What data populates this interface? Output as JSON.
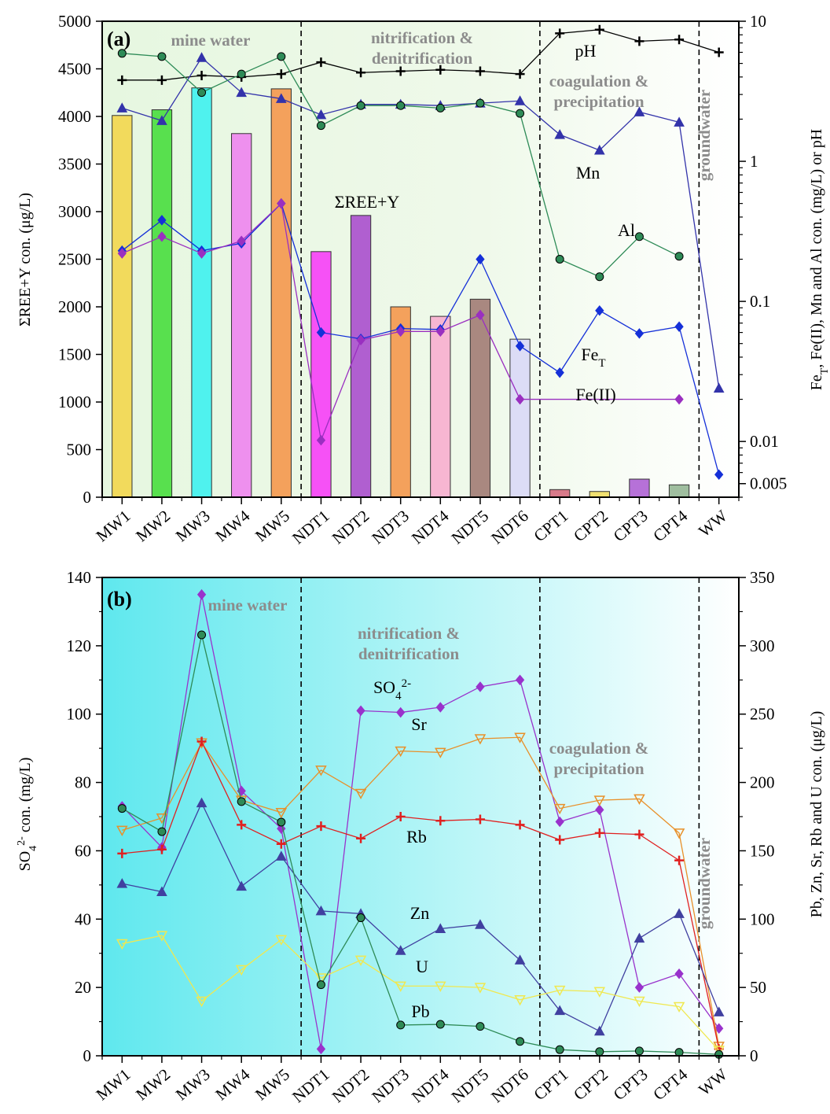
{
  "chart_data": [
    {
      "type": "bar",
      "panel_label": "(a)",
      "categories": [
        "MW1",
        "MW2",
        "MW3",
        "MW4",
        "MW5",
        "NDT1",
        "NDT2",
        "NDT3",
        "NDT4",
        "NDT5",
        "NDT6",
        "CPT1",
        "CPT2",
        "CPT3",
        "CPT4",
        "WW"
      ],
      "ylabel": "ΣREE+Y con. (μg/L)",
      "ylim": [
        0,
        5000
      ],
      "yticks": [
        "0",
        "500",
        "1000",
        "1500",
        "2000",
        "2500",
        "3000",
        "3500",
        "4000",
        "4500",
        "5000"
      ],
      "y2label": "FeT, Fe(II), Mn and Al con. (mg/L) or pH",
      "y2label_main": "Fe",
      "y2label_sub": "T",
      "y2label_rest": ", Fe(II), Mn and Al con. (mg/L) or pH",
      "y2scale": "log",
      "y2lim": [
        0.004,
        10
      ],
      "y2ticks": [
        {
          "value": 0.005,
          "label": "0.005"
        },
        {
          "value": 0.01,
          "label": "0.01"
        },
        {
          "value": 0.1,
          "label": "0.1"
        },
        {
          "value": 1,
          "label": "1"
        },
        {
          "value": 10,
          "label": "10"
        }
      ],
      "regions": [
        {
          "label_lines": [
            "mine water"
          ],
          "from": -0.5,
          "to": 4.5
        },
        {
          "label_lines": [
            "nitrification &",
            "denitrification"
          ],
          "from": 4.5,
          "to": 10.5
        },
        {
          "label_lines": [
            "coagulation &",
            "precipitation"
          ],
          "from": 10.5,
          "to": 14.5
        },
        {
          "label_lines": [
            "groundwater"
          ],
          "from": 14.5,
          "to": 15.5
        }
      ],
      "bars": {
        "name": "ΣREE+Y",
        "values": [
          4010,
          4070,
          4300,
          3820,
          4290,
          2580,
          2960,
          2000,
          1900,
          2080,
          1660,
          80,
          60,
          190,
          130,
          null
        ],
        "colors": [
          "#f2da5c",
          "#58e04e",
          "#4ff2ee",
          "#ee90ee",
          "#f4a15c",
          "#f651f6",
          "#b05fd0",
          "#f4a15c",
          "#f7b6d2",
          "#a98880",
          "#dcdcf6",
          "#d87a8a",
          "#f0e070",
          "#b671d8",
          "#9fbe9f",
          "#ffffff"
        ]
      },
      "series": [
        {
          "name": "pH",
          "axis": "y2",
          "color": "#000000",
          "marker": "plus",
          "values": [
            3.8,
            3.8,
            4.1,
            4.0,
            4.2,
            5.1,
            4.3,
            4.4,
            4.5,
            4.4,
            4.2,
            8.2,
            8.7,
            7.2,
            7.4,
            6.0
          ]
        },
        {
          "name": "Mn",
          "axis": "y2",
          "color": "#3333aa",
          "marker": "triangle",
          "values": [
            2.4,
            1.95,
            5.5,
            3.1,
            2.8,
            2.15,
            2.55,
            2.55,
            2.5,
            2.6,
            2.7,
            1.55,
            1.2,
            2.25,
            1.9,
            0.024
          ]
        },
        {
          "name": "Al",
          "axis": "y2",
          "color": "#2e8b57",
          "marker": "circle",
          "values": [
            5.9,
            5.6,
            3.1,
            4.2,
            5.6,
            1.8,
            2.5,
            2.5,
            2.4,
            2.6,
            2.2,
            0.2,
            0.15,
            0.29,
            0.21,
            null
          ]
        },
        {
          "name": "FeT",
          "label_main": "Fe",
          "label_sub": "T",
          "axis": "y2",
          "color": "#1530d8",
          "marker": "diamond",
          "values": [
            0.23,
            0.38,
            0.23,
            0.26,
            0.5,
            0.06,
            0.054,
            0.064,
            0.063,
            0.2,
            0.048,
            0.031,
            0.086,
            0.059,
            0.066,
            0.0058
          ]
        },
        {
          "name": "Fe(II)",
          "axis": "y2",
          "color": "#9a2fc0",
          "marker": "diamond",
          "values": [
            0.22,
            0.29,
            0.22,
            0.27,
            0.5,
            0.0102,
            0.053,
            0.061,
            0.061,
            0.08,
            0.02,
            null,
            null,
            null,
            0.02,
            null
          ]
        }
      ]
    },
    {
      "type": "line",
      "panel_label": "(b)",
      "categories": [
        "MW1",
        "MW2",
        "MW3",
        "MW4",
        "MW5",
        "NDT1",
        "NDT2",
        "NDT3",
        "NDT4",
        "NDT5",
        "NDT6",
        "CPT1",
        "CPT2",
        "CPT3",
        "CPT4",
        "WW"
      ],
      "ylabel": "SO42- con. (mg/L)",
      "ylabel_main": "SO",
      "ylabel_sub": "4",
      "ylabel_sup": "2-",
      "ylabel_rest": " con. (mg/L)",
      "ylim": [
        0,
        140
      ],
      "yticks": [
        "0",
        "20",
        "40",
        "60",
        "80",
        "100",
        "120",
        "140"
      ],
      "y2label": "Pb, Zn, Sr, Rb and U con. (μg/L)",
      "y2lim": [
        0,
        350
      ],
      "y2ticks": [
        "0",
        "50",
        "100",
        "150",
        "200",
        "250",
        "300",
        "350"
      ],
      "regions": [
        {
          "label_lines": [
            "mine water"
          ],
          "from": -0.5,
          "to": 4.5
        },
        {
          "label_lines": [
            "nitrification &",
            "denitrification"
          ],
          "from": 4.5,
          "to": 10.5
        },
        {
          "label_lines": [
            "coagulation &",
            "precipitation"
          ],
          "from": 10.5,
          "to": 14.5
        },
        {
          "label_lines": [
            "groundwater"
          ],
          "from": 14.5,
          "to": 15.5
        }
      ],
      "series": [
        {
          "name": "SO42-",
          "label_main": "SO",
          "label_sub": "4",
          "label_sup": "2-",
          "axis": "y",
          "color": "#9932cc",
          "marker": "diamond",
          "values": [
            73,
            61,
            135,
            77.5,
            66.5,
            2,
            101,
            100.5,
            102,
            108,
            110,
            68.5,
            72,
            20,
            24,
            8
          ]
        },
        {
          "name": "Sr",
          "axis": "y2",
          "color": "#e8902a",
          "marker": "tridown",
          "values": [
            165,
            174,
            229,
            187,
            178,
            209,
            192,
            223,
            222,
            232,
            233,
            181,
            187,
            188,
            163,
            7
          ]
        },
        {
          "name": "Rb",
          "axis": "y2",
          "color": "#e02020",
          "marker": "plus",
          "values": [
            148,
            151,
            230,
            169,
            155,
            168,
            159,
            175,
            172,
            173,
            169,
            158,
            163,
            162,
            143,
            5
          ]
        },
        {
          "name": "Zn",
          "axis": "y2",
          "color": "#4040a0",
          "marker": "triangle",
          "values": [
            126,
            120,
            185,
            124,
            146,
            106,
            104,
            77,
            93,
            96,
            70,
            33,
            18,
            86,
            104,
            32
          ]
        },
        {
          "name": "U",
          "axis": "y2",
          "color": "#f0e850",
          "marker": "tridown",
          "values": [
            82,
            88,
            40,
            63,
            85,
            57,
            70,
            51,
            51,
            50,
            41,
            48,
            47,
            40,
            36,
            4
          ]
        },
        {
          "name": "Pb",
          "axis": "y2",
          "color": "#2e8b57",
          "marker": "circle",
          "values": [
            181,
            164,
            308,
            186,
            171,
            52,
            101,
            22.5,
            23,
            21.5,
            10.5,
            4.5,
            3,
            3.5,
            2.5,
            1
          ]
        }
      ]
    }
  ]
}
